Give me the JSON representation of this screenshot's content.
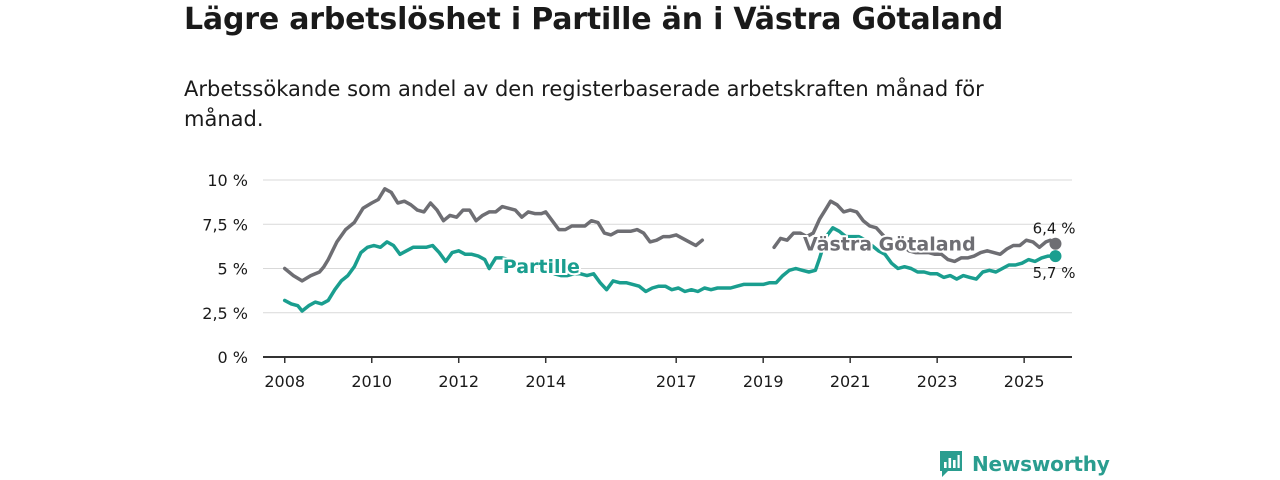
{
  "title": "Lägre arbetslöshet i Partille än i Västra Götaland",
  "subtitle": "Arbetssökande som andel av den registerbaserade arbetskraften månad för månad.",
  "brand": {
    "name": "Newsworthy",
    "icon": "newsworthy-logo-icon"
  },
  "colors": {
    "partille": "#1a9e8f",
    "vastra_gotaland": "#6e6e73",
    "grid": "#d9d9d9",
    "axis": "#333333"
  },
  "chart_data": {
    "type": "line",
    "title": "Lägre arbetslöshet i Partille än i Västra Götaland",
    "xlabel": "",
    "ylabel": "",
    "xlim": [
      2007.5,
      2026.1
    ],
    "ylim": [
      0,
      10
    ],
    "x_ticks": [
      {
        "value": 2008,
        "label": "2008"
      },
      {
        "value": 2010,
        "label": "2010"
      },
      {
        "value": 2012,
        "label": "2012"
      },
      {
        "value": 2014,
        "label": "2014"
      },
      {
        "value": 2017,
        "label": "2017"
      },
      {
        "value": 2019,
        "label": "2019"
      },
      {
        "value": 2021,
        "label": "2021"
      },
      {
        "value": 2023,
        "label": "2023"
      },
      {
        "value": 2025,
        "label": "2025"
      }
    ],
    "y_ticks": [
      {
        "value": 0,
        "label": "0 %"
      },
      {
        "value": 2.5,
        "label": "2,5 %"
      },
      {
        "value": 5,
        "label": "5 %"
      },
      {
        "value": 7.5,
        "label": "7,5 %"
      },
      {
        "value": 10,
        "label": "10 %"
      }
    ],
    "series": [
      {
        "name": "Västra Götaland",
        "color": "#6e6e73",
        "end_label": "6,4 %",
        "points": [
          [
            2008.0,
            5.0
          ],
          [
            2008.2,
            4.6
          ],
          [
            2008.4,
            4.3
          ],
          [
            2008.6,
            4.6
          ],
          [
            2008.8,
            4.8
          ],
          [
            2008.9,
            5.1
          ],
          [
            2009.0,
            5.5
          ],
          [
            2009.2,
            6.5
          ],
          [
            2009.4,
            7.2
          ],
          [
            2009.6,
            7.6
          ],
          [
            2009.8,
            8.4
          ],
          [
            2010.0,
            8.7
          ],
          [
            2010.15,
            8.9
          ],
          [
            2010.3,
            9.5
          ],
          [
            2010.45,
            9.3
          ],
          [
            2010.6,
            8.7
          ],
          [
            2010.75,
            8.8
          ],
          [
            2010.9,
            8.6
          ],
          [
            2011.05,
            8.3
          ],
          [
            2011.2,
            8.2
          ],
          [
            2011.35,
            8.7
          ],
          [
            2011.5,
            8.3
          ],
          [
            2011.65,
            7.7
          ],
          [
            2011.8,
            8.0
          ],
          [
            2011.95,
            7.9
          ],
          [
            2012.1,
            8.3
          ],
          [
            2012.25,
            8.3
          ],
          [
            2012.4,
            7.7
          ],
          [
            2012.55,
            8.0
          ],
          [
            2012.7,
            8.2
          ],
          [
            2012.85,
            8.2
          ],
          [
            2013.0,
            8.5
          ],
          [
            2013.15,
            8.4
          ],
          [
            2013.3,
            8.3
          ],
          [
            2013.45,
            7.9
          ],
          [
            2013.6,
            8.2
          ],
          [
            2013.75,
            8.1
          ],
          [
            2013.9,
            8.1
          ],
          [
            2014.0,
            8.2
          ],
          [
            2014.15,
            7.7
          ],
          [
            2014.3,
            7.2
          ],
          [
            2014.45,
            7.2
          ],
          [
            2014.6,
            7.4
          ],
          [
            2014.75,
            7.4
          ],
          [
            2014.9,
            7.4
          ],
          [
            2015.05,
            7.7
          ],
          [
            2015.2,
            7.6
          ],
          [
            2015.35,
            7.0
          ],
          [
            2015.5,
            6.9
          ],
          [
            2015.65,
            7.1
          ],
          [
            2015.8,
            7.1
          ],
          [
            2015.95,
            7.1
          ],
          [
            2016.1,
            7.2
          ],
          [
            2016.25,
            7.0
          ],
          [
            2016.4,
            6.5
          ],
          [
            2016.55,
            6.6
          ],
          [
            2016.7,
            6.8
          ],
          [
            2016.85,
            6.8
          ],
          [
            2017.0,
            6.9
          ],
          [
            2017.15,
            6.7
          ],
          [
            2017.3,
            6.5
          ],
          [
            2017.45,
            6.3
          ],
          [
            2017.6,
            6.6
          ]
        ]
      },
      {
        "name": "Västra Götaland (forts.)",
        "color": "#6e6e73",
        "points": [
          [
            2019.25,
            6.2
          ],
          [
            2019.4,
            6.7
          ],
          [
            2019.55,
            6.6
          ],
          [
            2019.7,
            7.0
          ],
          [
            2019.85,
            7.0
          ],
          [
            2020.0,
            6.8
          ],
          [
            2020.15,
            7.0
          ],
          [
            2020.3,
            7.8
          ],
          [
            2020.45,
            8.4
          ],
          [
            2020.55,
            8.8
          ],
          [
            2020.7,
            8.6
          ],
          [
            2020.85,
            8.2
          ],
          [
            2021.0,
            8.3
          ],
          [
            2021.15,
            8.2
          ],
          [
            2021.3,
            7.7
          ],
          [
            2021.45,
            7.4
          ],
          [
            2021.6,
            7.3
          ],
          [
            2021.75,
            6.9
          ],
          [
            2021.9,
            6.5
          ],
          [
            2022.05,
            6.4
          ],
          [
            2022.2,
            6.3
          ],
          [
            2022.35,
            6.0
          ],
          [
            2022.5,
            5.9
          ],
          [
            2022.65,
            5.9
          ],
          [
            2022.8,
            5.9
          ],
          [
            2022.95,
            5.8
          ],
          [
            2023.1,
            5.8
          ],
          [
            2023.25,
            5.5
          ],
          [
            2023.4,
            5.4
          ],
          [
            2023.55,
            5.6
          ],
          [
            2023.7,
            5.6
          ],
          [
            2023.85,
            5.7
          ],
          [
            2024.0,
            5.9
          ],
          [
            2024.15,
            6.0
          ],
          [
            2024.3,
            5.9
          ],
          [
            2024.45,
            5.8
          ],
          [
            2024.6,
            6.1
          ],
          [
            2024.75,
            6.3
          ],
          [
            2024.9,
            6.3
          ],
          [
            2025.05,
            6.6
          ],
          [
            2025.2,
            6.5
          ],
          [
            2025.35,
            6.2
          ],
          [
            2025.5,
            6.5
          ],
          [
            2025.6,
            6.6
          ],
          [
            2025.72,
            6.4
          ]
        ]
      },
      {
        "name": "Partille",
        "color": "#1a9e8f",
        "end_label": "5,7 %",
        "points": [
          [
            2008.0,
            3.2
          ],
          [
            2008.15,
            3.0
          ],
          [
            2008.3,
            2.9
          ],
          [
            2008.4,
            2.6
          ],
          [
            2008.55,
            2.9
          ],
          [
            2008.7,
            3.1
          ],
          [
            2008.85,
            3.0
          ],
          [
            2009.0,
            3.2
          ],
          [
            2009.15,
            3.8
          ],
          [
            2009.3,
            4.3
          ],
          [
            2009.45,
            4.6
          ],
          [
            2009.6,
            5.1
          ],
          [
            2009.75,
            5.9
          ],
          [
            2009.9,
            6.2
          ],
          [
            2010.05,
            6.3
          ],
          [
            2010.2,
            6.2
          ],
          [
            2010.35,
            6.5
          ],
          [
            2010.5,
            6.3
          ],
          [
            2010.65,
            5.8
          ],
          [
            2010.8,
            6.0
          ],
          [
            2010.95,
            6.2
          ],
          [
            2011.1,
            6.2
          ],
          [
            2011.25,
            6.2
          ],
          [
            2011.4,
            6.3
          ],
          [
            2011.55,
            5.9
          ],
          [
            2011.7,
            5.4
          ],
          [
            2011.85,
            5.9
          ],
          [
            2012.0,
            6.0
          ],
          [
            2012.15,
            5.8
          ],
          [
            2012.3,
            5.8
          ],
          [
            2012.45,
            5.7
          ],
          [
            2012.6,
            5.5
          ],
          [
            2012.7,
            5.0
          ],
          [
            2012.85,
            5.6
          ],
          [
            2013.0,
            5.6
          ],
          [
            2013.15,
            5.5
          ]
        ]
      },
      {
        "name": "Partille (forts.)",
        "color": "#1a9e8f",
        "points": [
          [
            2014.2,
            4.7
          ],
          [
            2014.35,
            4.6
          ],
          [
            2014.5,
            4.6
          ],
          [
            2014.65,
            4.7
          ],
          [
            2014.8,
            4.7
          ],
          [
            2014.95,
            4.6
          ],
          [
            2015.1,
            4.7
          ],
          [
            2015.25,
            4.2
          ],
          [
            2015.4,
            3.8
          ],
          [
            2015.55,
            4.3
          ],
          [
            2015.7,
            4.2
          ],
          [
            2015.85,
            4.2
          ],
          [
            2016.0,
            4.1
          ],
          [
            2016.15,
            4.0
          ],
          [
            2016.3,
            3.7
          ],
          [
            2016.45,
            3.9
          ],
          [
            2016.6,
            4.0
          ],
          [
            2016.75,
            4.0
          ],
          [
            2016.9,
            3.8
          ],
          [
            2017.05,
            3.9
          ],
          [
            2017.2,
            3.7
          ],
          [
            2017.35,
            3.8
          ],
          [
            2017.5,
            3.7
          ],
          [
            2017.65,
            3.9
          ],
          [
            2017.8,
            3.8
          ],
          [
            2017.95,
            3.9
          ],
          [
            2018.1,
            3.9
          ],
          [
            2018.25,
            3.9
          ],
          [
            2018.4,
            4.0
          ],
          [
            2018.55,
            4.1
          ],
          [
            2018.7,
            4.1
          ],
          [
            2018.85,
            4.1
          ],
          [
            2019.0,
            4.1
          ],
          [
            2019.15,
            4.2
          ],
          [
            2019.3,
            4.2
          ],
          [
            2019.45,
            4.6
          ],
          [
            2019.6,
            4.9
          ],
          [
            2019.75,
            5.0
          ],
          [
            2019.9,
            4.9
          ],
          [
            2020.05,
            4.8
          ],
          [
            2020.2,
            4.9
          ],
          [
            2020.3,
            5.6
          ],
          [
            2020.45,
            6.8
          ],
          [
            2020.6,
            7.3
          ],
          [
            2020.75,
            7.1
          ],
          [
            2020.9,
            6.8
          ],
          [
            2021.05,
            6.8
          ],
          [
            2021.2,
            6.8
          ],
          [
            2021.35,
            6.6
          ],
          [
            2021.5,
            6.3
          ],
          [
            2021.65,
            6.0
          ],
          [
            2021.8,
            5.8
          ],
          [
            2021.95,
            5.3
          ],
          [
            2022.1,
            5.0
          ],
          [
            2022.25,
            5.1
          ],
          [
            2022.4,
            5.0
          ],
          [
            2022.55,
            4.8
          ],
          [
            2022.7,
            4.8
          ],
          [
            2022.85,
            4.7
          ],
          [
            2023.0,
            4.7
          ],
          [
            2023.15,
            4.5
          ],
          [
            2023.3,
            4.6
          ],
          [
            2023.45,
            4.4
          ],
          [
            2023.6,
            4.6
          ],
          [
            2023.75,
            4.5
          ],
          [
            2023.9,
            4.4
          ],
          [
            2024.05,
            4.8
          ],
          [
            2024.2,
            4.9
          ],
          [
            2024.35,
            4.8
          ],
          [
            2024.5,
            5.0
          ],
          [
            2024.65,
            5.2
          ],
          [
            2024.8,
            5.2
          ],
          [
            2024.95,
            5.3
          ],
          [
            2025.1,
            5.5
          ],
          [
            2025.25,
            5.4
          ],
          [
            2025.4,
            5.6
          ],
          [
            2025.55,
            5.7
          ],
          [
            2025.72,
            5.7
          ]
        ]
      }
    ],
    "labels": [
      {
        "text": "Västra Götaland",
        "series": "Västra Götaland",
        "x": 2021.9,
        "y": 6.4
      },
      {
        "text": "Partille",
        "series": "Partille",
        "x": 2013.9,
        "y": 5.15
      }
    ]
  }
}
